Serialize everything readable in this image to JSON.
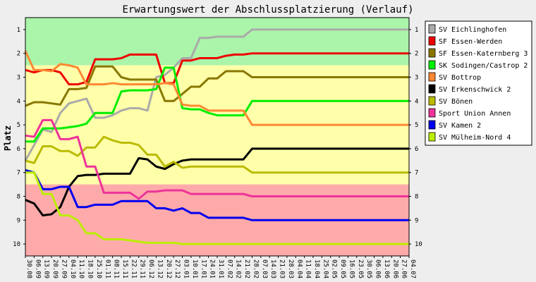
{
  "chart_data": {
    "type": "line",
    "title": "Erwartungswert der Abschlussplatzierung (Verlauf)",
    "ylabel": "Platz",
    "xlabel": "",
    "ylim": [
      10.5,
      0.5
    ],
    "y_ticks": [
      1,
      2,
      3,
      4,
      5,
      6,
      7,
      8,
      9,
      10
    ],
    "zones": [
      {
        "from": 0.5,
        "to": 2.5,
        "color": "#aaf5aa"
      },
      {
        "from": 2.5,
        "to": 7.5,
        "color": "#ffffaa"
      },
      {
        "from": 7.5,
        "to": 10.5,
        "color": "#ffaaaa"
      }
    ],
    "categories": [
      "30.08",
      "06.09",
      "13.09",
      "20.09",
      "27.09",
      "04.10",
      "11.10",
      "18.10",
      "25.10",
      "01.11",
      "08.11",
      "15.11",
      "22.11",
      "29.11",
      "06.12",
      "13.12",
      "20.12",
      "27.12",
      "03.01",
      "10.01",
      "17.01",
      "24.01",
      "31.01",
      "07.02",
      "14.02",
      "21.02",
      "28.02",
      "07.03",
      "14.03",
      "21.03",
      "28.03",
      "04.04",
      "11.04",
      "18.04",
      "25.04",
      "02.05",
      "09.05",
      "16.05",
      "23.05",
      "30.05",
      "06.06",
      "13.06",
      "20.06",
      "27.06",
      "04.07"
    ],
    "series": [
      {
        "name": "SV Eichlinghofen",
        "color": "#aaaaaa",
        "values": [
          [
            0,
            6.5
          ],
          [
            2,
            5.2
          ],
          [
            3,
            5.3
          ],
          [
            4,
            4.5
          ],
          [
            5,
            4.1
          ],
          [
            6,
            4.0
          ],
          [
            7,
            3.9
          ],
          [
            8,
            4.7
          ],
          [
            9,
            4.7
          ],
          [
            10,
            4.6
          ],
          [
            11,
            4.4
          ],
          [
            12,
            4.3
          ],
          [
            13,
            4.3
          ],
          [
            14,
            4.4
          ],
          [
            15,
            3.0
          ],
          [
            16,
            2.9
          ],
          [
            17,
            2.6
          ],
          [
            18,
            2.2
          ],
          [
            19,
            2.2
          ],
          [
            20,
            1.35
          ],
          [
            21,
            1.35
          ],
          [
            22,
            1.3
          ],
          [
            23,
            1.3
          ],
          [
            24,
            1.3
          ],
          [
            25,
            1.3
          ],
          [
            26,
            1.0
          ],
          [
            44,
            1.0
          ]
        ]
      },
      {
        "name": "SF Essen-Werden",
        "color": "#ee0000",
        "values": [
          [
            0,
            2.7
          ],
          [
            1,
            2.8
          ],
          [
            2,
            2.7
          ],
          [
            3,
            2.7
          ],
          [
            4,
            2.8
          ],
          [
            5,
            3.3
          ],
          [
            6,
            3.3
          ],
          [
            7,
            3.2
          ],
          [
            8,
            2.25
          ],
          [
            9,
            2.25
          ],
          [
            10,
            2.25
          ],
          [
            11,
            2.2
          ],
          [
            12,
            2.05
          ],
          [
            13,
            2.05
          ],
          [
            14,
            2.05
          ],
          [
            15,
            2.05
          ],
          [
            16,
            3.25
          ],
          [
            17,
            3.25
          ],
          [
            18,
            2.3
          ],
          [
            19,
            2.3
          ],
          [
            20,
            2.2
          ],
          [
            21,
            2.2
          ],
          [
            22,
            2.2
          ],
          [
            23,
            2.1
          ],
          [
            24,
            2.05
          ],
          [
            25,
            2.05
          ],
          [
            26,
            2.0
          ],
          [
            44,
            2.0
          ]
        ]
      },
      {
        "name": "SF Essen-Katernberg 3",
        "color": "#887700",
        "values": [
          [
            0,
            4.2
          ],
          [
            1,
            4.05
          ],
          [
            2,
            4.05
          ],
          [
            3,
            4.1
          ],
          [
            4,
            4.15
          ],
          [
            5,
            3.5
          ],
          [
            6,
            3.5
          ],
          [
            7,
            3.45
          ],
          [
            8,
            2.55
          ],
          [
            9,
            2.55
          ],
          [
            10,
            2.55
          ],
          [
            11,
            3.0
          ],
          [
            12,
            3.1
          ],
          [
            13,
            3.1
          ],
          [
            14,
            3.1
          ],
          [
            15,
            3.1
          ],
          [
            16,
            4.0
          ],
          [
            17,
            4.0
          ],
          [
            18,
            3.7
          ],
          [
            19,
            3.4
          ],
          [
            20,
            3.4
          ],
          [
            21,
            3.05
          ],
          [
            22,
            3.05
          ],
          [
            23,
            2.75
          ],
          [
            24,
            2.75
          ],
          [
            25,
            2.75
          ],
          [
            26,
            3.0
          ],
          [
            44,
            3.0
          ]
        ]
      },
      {
        "name": "SK Sodingen/Castrop 2",
        "color": "#00ee00",
        "values": [
          [
            0,
            5.7
          ],
          [
            1,
            5.7
          ],
          [
            2,
            5.15
          ],
          [
            3,
            5.15
          ],
          [
            4,
            5.15
          ],
          [
            5,
            5.1
          ],
          [
            6,
            5.05
          ],
          [
            7,
            4.95
          ],
          [
            8,
            4.5
          ],
          [
            9,
            4.5
          ],
          [
            10,
            4.5
          ],
          [
            11,
            3.6
          ],
          [
            12,
            3.55
          ],
          [
            13,
            3.55
          ],
          [
            14,
            3.55
          ],
          [
            15,
            3.5
          ],
          [
            16,
            2.6
          ],
          [
            17,
            2.6
          ],
          [
            18,
            4.3
          ],
          [
            19,
            4.35
          ],
          [
            20,
            4.35
          ],
          [
            21,
            4.5
          ],
          [
            22,
            4.6
          ],
          [
            23,
            4.6
          ],
          [
            24,
            4.6
          ],
          [
            25,
            4.6
          ],
          [
            26,
            4.0
          ],
          [
            44,
            4.0
          ]
        ]
      },
      {
        "name": "SV Bottrop",
        "color": "#ff8833",
        "values": [
          [
            0,
            1.9
          ],
          [
            1,
            2.7
          ],
          [
            2,
            2.7
          ],
          [
            3,
            2.75
          ],
          [
            4,
            2.45
          ],
          [
            5,
            2.5
          ],
          [
            6,
            2.6
          ],
          [
            7,
            3.3
          ],
          [
            8,
            3.3
          ],
          [
            9,
            3.3
          ],
          [
            10,
            3.25
          ],
          [
            11,
            3.3
          ],
          [
            12,
            3.3
          ],
          [
            13,
            3.3
          ],
          [
            14,
            3.3
          ],
          [
            15,
            3.3
          ],
          [
            16,
            3.25
          ],
          [
            17,
            3.3
          ],
          [
            18,
            4.15
          ],
          [
            19,
            4.2
          ],
          [
            20,
            4.2
          ],
          [
            21,
            4.4
          ],
          [
            22,
            4.4
          ],
          [
            23,
            4.4
          ],
          [
            24,
            4.4
          ],
          [
            25,
            4.4
          ],
          [
            26,
            5.0
          ],
          [
            44,
            5.0
          ]
        ]
      },
      {
        "name": "SV Erkenschwick 2",
        "color": "#000000",
        "values": [
          [
            0,
            8.15
          ],
          [
            1,
            8.3
          ],
          [
            2,
            8.8
          ],
          [
            3,
            8.75
          ],
          [
            4,
            8.45
          ],
          [
            5,
            7.6
          ],
          [
            6,
            7.15
          ],
          [
            7,
            7.1
          ],
          [
            8,
            7.1
          ],
          [
            9,
            7.05
          ],
          [
            10,
            7.05
          ],
          [
            11,
            7.05
          ],
          [
            12,
            7.05
          ],
          [
            13,
            6.4
          ],
          [
            14,
            6.45
          ],
          [
            15,
            6.75
          ],
          [
            16,
            6.85
          ],
          [
            17,
            6.65
          ],
          [
            18,
            6.5
          ],
          [
            19,
            6.45
          ],
          [
            20,
            6.45
          ],
          [
            21,
            6.45
          ],
          [
            22,
            6.45
          ],
          [
            23,
            6.45
          ],
          [
            24,
            6.45
          ],
          [
            25,
            6.45
          ],
          [
            26,
            6.0
          ],
          [
            44,
            6.0
          ]
        ]
      },
      {
        "name": "SV Bönen",
        "color": "#bbbb00",
        "values": [
          [
            0,
            6.5
          ],
          [
            1,
            6.6
          ],
          [
            2,
            5.9
          ],
          [
            3,
            5.9
          ],
          [
            4,
            6.1
          ],
          [
            5,
            6.1
          ],
          [
            6,
            6.3
          ],
          [
            7,
            5.95
          ],
          [
            8,
            5.95
          ],
          [
            9,
            5.5
          ],
          [
            10,
            5.65
          ],
          [
            11,
            5.75
          ],
          [
            12,
            5.75
          ],
          [
            13,
            5.85
          ],
          [
            14,
            6.25
          ],
          [
            15,
            6.25
          ],
          [
            16,
            6.75
          ],
          [
            17,
            6.55
          ],
          [
            18,
            6.8
          ],
          [
            19,
            6.75
          ],
          [
            20,
            6.75
          ],
          [
            21,
            6.75
          ],
          [
            22,
            6.75
          ],
          [
            23,
            6.75
          ],
          [
            24,
            6.75
          ],
          [
            25,
            6.75
          ],
          [
            26,
            7.0
          ],
          [
            44,
            7.0
          ]
        ]
      },
      {
        "name": "Sport Union Annen",
        "color": "#ee3399",
        "values": [
          [
            0,
            5.45
          ],
          [
            1,
            5.5
          ],
          [
            2,
            4.8
          ],
          [
            3,
            4.8
          ],
          [
            4,
            5.6
          ],
          [
            5,
            5.6
          ],
          [
            6,
            5.5
          ],
          [
            7,
            6.75
          ],
          [
            8,
            6.75
          ],
          [
            9,
            7.85
          ],
          [
            10,
            7.85
          ],
          [
            11,
            7.85
          ],
          [
            12,
            7.85
          ],
          [
            13,
            8.1
          ],
          [
            14,
            7.8
          ],
          [
            15,
            7.8
          ],
          [
            16,
            7.75
          ],
          [
            17,
            7.75
          ],
          [
            18,
            7.75
          ],
          [
            19,
            7.9
          ],
          [
            20,
            7.9
          ],
          [
            21,
            7.9
          ],
          [
            22,
            7.9
          ],
          [
            23,
            7.9
          ],
          [
            24,
            7.9
          ],
          [
            25,
            7.9
          ],
          [
            26,
            8.0
          ],
          [
            44,
            8.0
          ]
        ]
      },
      {
        "name": "SV Kamen 2",
        "color": "#0000ee",
        "values": [
          [
            0,
            6.9
          ],
          [
            1,
            7.0
          ],
          [
            2,
            7.7
          ],
          [
            3,
            7.7
          ],
          [
            4,
            7.6
          ],
          [
            5,
            7.6
          ],
          [
            6,
            8.45
          ],
          [
            7,
            8.45
          ],
          [
            8,
            8.35
          ],
          [
            9,
            8.35
          ],
          [
            10,
            8.35
          ],
          [
            11,
            8.2
          ],
          [
            12,
            8.2
          ],
          [
            13,
            8.2
          ],
          [
            14,
            8.2
          ],
          [
            15,
            8.5
          ],
          [
            16,
            8.5
          ],
          [
            17,
            8.6
          ],
          [
            18,
            8.5
          ],
          [
            19,
            8.7
          ],
          [
            20,
            8.7
          ],
          [
            21,
            8.9
          ],
          [
            22,
            8.9
          ],
          [
            23,
            8.9
          ],
          [
            24,
            8.9
          ],
          [
            25,
            8.9
          ],
          [
            26,
            9.0
          ],
          [
            44,
            9.0
          ]
        ]
      },
      {
        "name": "SV Mülheim-Nord 4",
        "color": "#bbee00",
        "values": [
          [
            0,
            7.0
          ],
          [
            1,
            7.0
          ],
          [
            2,
            7.9
          ],
          [
            3,
            7.9
          ],
          [
            4,
            8.8
          ],
          [
            5,
            8.8
          ],
          [
            6,
            9.0
          ],
          [
            7,
            9.55
          ],
          [
            8,
            9.55
          ],
          [
            9,
            9.8
          ],
          [
            10,
            9.8
          ],
          [
            11,
            9.8
          ],
          [
            12,
            9.85
          ],
          [
            13,
            9.9
          ],
          [
            14,
            9.95
          ],
          [
            15,
            9.95
          ],
          [
            16,
            9.95
          ],
          [
            17,
            9.95
          ],
          [
            18,
            10.0
          ],
          [
            19,
            10.0
          ],
          [
            20,
            10.0
          ],
          [
            21,
            10.0
          ],
          [
            22,
            10.0
          ],
          [
            23,
            10.0
          ],
          [
            24,
            10.0
          ],
          [
            25,
            10.0
          ],
          [
            26,
            10.0
          ],
          [
            44,
            10.0
          ]
        ]
      }
    ]
  }
}
